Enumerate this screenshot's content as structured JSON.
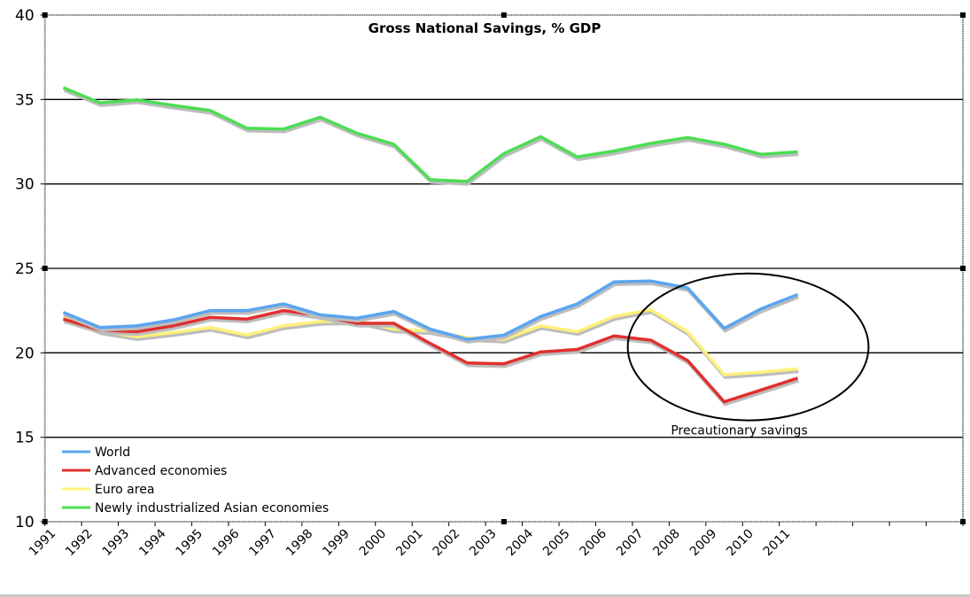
{
  "chart_data": {
    "type": "line",
    "title": "Gross National Savings, % GDP",
    "xlabel": "",
    "ylabel": "",
    "ylim": [
      10,
      40
    ],
    "yticks": [
      10,
      15,
      20,
      25,
      30,
      35,
      40
    ],
    "grid": "horizontal",
    "legend_position": "bottom-left",
    "categories": [
      "1991",
      "1992",
      "1993",
      "1994",
      "1995",
      "1996",
      "1997",
      "1998",
      "1999",
      "2000",
      "2001",
      "2002",
      "2003",
      "2004",
      "2005",
      "2006",
      "2007",
      "2008",
      "2009",
      "2010",
      "2011",
      "",
      "",
      "",
      ""
    ],
    "series": [
      {
        "name": "World",
        "color": "#5aa5f0",
        "values": [
          22.4,
          21.5,
          21.6,
          21.95,
          22.5,
          22.5,
          22.9,
          22.25,
          22.05,
          22.45,
          21.4,
          20.8,
          21.05,
          22.15,
          22.9,
          24.2,
          24.25,
          23.85,
          21.45,
          22.6,
          23.45
        ]
      },
      {
        "name": "Advanced economies",
        "color": "#e0302e",
        "values": [
          22.0,
          21.35,
          21.25,
          21.6,
          22.1,
          22.0,
          22.5,
          22.2,
          21.75,
          21.75,
          20.55,
          19.4,
          19.35,
          20.05,
          20.2,
          21.0,
          20.75,
          19.55,
          17.1,
          17.8,
          18.5
        ]
      },
      {
        "name": "Euro area",
        "color": "#fff17a",
        "values": [
          22.2,
          21.3,
          20.95,
          21.2,
          21.5,
          21.05,
          21.6,
          21.85,
          21.9,
          21.4,
          21.3,
          20.9,
          20.8,
          21.6,
          21.25,
          22.15,
          22.55,
          21.25,
          18.7,
          18.85,
          19.05
        ]
      },
      {
        "name": "Newly industrialized Asian economies",
        "color": "#4ddd55",
        "values": [
          35.7,
          34.8,
          34.98,
          34.65,
          34.35,
          33.3,
          33.25,
          33.95,
          33.0,
          32.35,
          30.25,
          30.15,
          31.8,
          32.8,
          31.6,
          31.95,
          32.4,
          32.75,
          32.35,
          31.75,
          31.9
        ]
      }
    ],
    "annotations": [
      {
        "text": "Precautionary savings",
        "shape": "ellipse",
        "around_categories": [
          "2007",
          "2011"
        ],
        "y_range": [
          16.0,
          24.7
        ]
      }
    ]
  }
}
